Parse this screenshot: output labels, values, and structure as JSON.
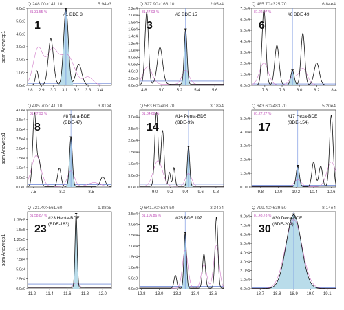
{
  "y_axis_label": "sam Anewrep1",
  "chart_data": [
    {
      "type": "line",
      "panel_number": "1",
      "title": "#1 BDE 3",
      "title2": "",
      "transition": "Q 248.00>141.10",
      "max_intensity": "5.94e3",
      "match": "81.31.55 %",
      "xlim": [
        2.78,
        3.5
      ],
      "ylim": [
        0,
        6.0
      ],
      "y_exp": "e3",
      "x_ticks": [
        "2.8",
        "2.9",
        "3.0",
        "3.1",
        "3.2",
        "3.3",
        "3.4"
      ],
      "y_ticks": [
        "0.0e0",
        "1.0e3",
        "2.0e3",
        "3.0e3",
        "4.0e3",
        "5.0e3",
        "6.0e3"
      ],
      "peak_rt": 3.11,
      "series": [
        {
          "style": "black",
          "peaks": [
            [
              2.86,
              1.1,
              0.012
            ],
            [
              2.98,
              3.6,
              0.022
            ],
            [
              3.11,
              5.94,
              0.02
            ],
            [
              3.22,
              1.6,
              0.025
            ]
          ]
        },
        {
          "style": "pink",
          "peaks": [
            [
              2.87,
              2.8,
              0.04
            ],
            [
              2.99,
              2.6,
              0.05
            ],
            [
              3.12,
              2.3,
              0.06
            ],
            [
              3.3,
              0.6,
              0.04
            ]
          ]
        }
      ]
    },
    {
      "type": "line",
      "panel_number": "3",
      "title": "#3 BDE 15",
      "title2": "",
      "transition": "Q 327.90>168.10",
      "max_intensity": "2.05e4",
      "match": "81.47.93 %",
      "xlim": [
        4.75,
        5.7
      ],
      "ylim": [
        0,
        2.2
      ],
      "y_exp": "e4",
      "x_ticks": [
        "4.8",
        "5.0",
        "5.2",
        "5.4",
        "5.6"
      ],
      "y_ticks": [
        "0.0e0",
        "2.0e3",
        "4.0e3",
        "6.0e3",
        "8.0e3",
        "1.0e4",
        "1.2e4",
        "1.4e4",
        "1.6e4",
        "1.8e4",
        "2.0e4",
        "2.2e4"
      ],
      "y_tick_values": [
        0,
        0.2,
        0.4,
        0.6,
        0.8,
        1.0,
        1.2,
        1.4,
        1.6,
        1.8,
        2.0,
        2.2
      ],
      "peak_rt": 5.27,
      "series": [
        {
          "style": "black",
          "peaks": [
            [
              4.83,
              2.05,
              0.02
            ],
            [
              4.98,
              1.05,
              0.03
            ],
            [
              5.27,
              1.58,
              0.016
            ]
          ]
        },
        {
          "style": "pink",
          "peaks": [
            [
              4.84,
              0.5,
              0.05
            ],
            [
              5.27,
              0.4,
              0.04
            ]
          ]
        }
      ]
    },
    {
      "type": "line",
      "panel_number": "6",
      "title": "#6 BDE 49",
      "title2": "",
      "transition": "Q 485.70>325.70",
      "max_intensity": "6.84e4",
      "match": "81.22.07 %",
      "xlim": [
        7.45,
        8.42
      ],
      "ylim": [
        0,
        7.0
      ],
      "y_exp": "e4",
      "x_ticks": [
        "7.6",
        "7.8",
        "8.0",
        "8.2",
        "8.4"
      ],
      "y_ticks": [
        "0.0e0",
        "1.0e4",
        "2.0e4",
        "3.0e4",
        "4.0e4",
        "5.0e4",
        "6.0e4",
        "7.0e4"
      ],
      "peak_rt": 7.92,
      "series": [
        {
          "style": "black",
          "peaks": [
            [
              7.59,
              6.84,
              0.022
            ],
            [
              7.74,
              3.6,
              0.025
            ],
            [
              7.92,
              1.3,
              0.02
            ],
            [
              8.04,
              4.7,
              0.022
            ],
            [
              8.2,
              2.0,
              0.03
            ]
          ]
        },
        {
          "style": "pink",
          "peaks": [
            [
              7.59,
              2.0,
              0.05
            ],
            [
              7.92,
              0.7,
              0.04
            ],
            [
              8.04,
              1.5,
              0.05
            ]
          ]
        }
      ]
    },
    {
      "type": "line",
      "panel_number": "8",
      "title": "#8 Tetra-BDE",
      "title2": "(BDE-47)",
      "transition": "Q 485.70>141.10",
      "max_intensity": "3.81e4",
      "match": "81.77.93 %",
      "xlim": [
        7.4,
        8.85
      ],
      "ylim": [
        0,
        4.0
      ],
      "y_exp": "e4",
      "x_ticks": [
        "7.5",
        "8.0",
        "8.5"
      ],
      "y_ticks": [
        "0.0e0",
        "5.0e3",
        "1.0e4",
        "1.5e4",
        "2.0e4",
        "2.5e4",
        "3.0e4",
        "3.5e4",
        "4.0e4"
      ],
      "y_tick_values": [
        0,
        0.5,
        1.0,
        1.5,
        2.0,
        2.5,
        3.0,
        3.5,
        4.0
      ],
      "peak_rt": 8.15,
      "series": [
        {
          "style": "black",
          "peaks": [
            [
              7.52,
              3.81,
              0.03
            ],
            [
              7.6,
              1.3,
              0.03
            ],
            [
              7.95,
              0.95,
              0.03
            ],
            [
              8.15,
              2.55,
              0.025
            ],
            [
              8.7,
              0.5,
              0.04
            ]
          ]
        },
        {
          "style": "pink",
          "peaks": [
            [
              7.55,
              1.6,
              0.08
            ],
            [
              8.15,
              0.8,
              0.06
            ],
            [
              8.55,
              0.2,
              0.1
            ]
          ]
        }
      ]
    },
    {
      "type": "line",
      "panel_number": "14",
      "title": "#14 Penta-BDE",
      "title2": "(BDE-99)",
      "transition": "Q 563.60>403.70",
      "max_intensity": "3.18e4",
      "match": "81.84.68 %",
      "xlim": [
        8.8,
        9.9
      ],
      "ylim": [
        0,
        3.3
      ],
      "y_exp": "e4",
      "x_ticks": [
        "9.0",
        "9.2",
        "9.4",
        "9.6",
        "9.8"
      ],
      "y_ticks": [
        "0.0e0",
        "5.0e3",
        "1.0e4",
        "1.5e4",
        "2.0e4",
        "2.5e4",
        "3.0e4"
      ],
      "y_tick_values": [
        0,
        0.5,
        1.0,
        1.5,
        2.0,
        2.5,
        3.0
      ],
      "peak_rt": 9.44,
      "series": [
        {
          "style": "black",
          "peaks": [
            [
              9.02,
              3.18,
              0.022
            ],
            [
              9.1,
              2.4,
              0.02
            ],
            [
              9.19,
              0.6,
              0.015
            ],
            [
              9.25,
              0.8,
              0.015
            ],
            [
              9.44,
              1.7,
              0.016
            ]
          ]
        },
        {
          "style": "pink",
          "peaks": [
            [
              9.04,
              1.1,
              0.06
            ],
            [
              9.44,
              0.55,
              0.04
            ]
          ]
        }
      ]
    },
    {
      "type": "line",
      "panel_number": "17",
      "title": "#17 Hexa-BDE",
      "title2": "(BDE-154)",
      "transition": "Q 643.60>483.70",
      "max_intensity": "5.20e4",
      "match": "81.27.27 %",
      "xlim": [
        9.7,
        10.65
      ],
      "ylim": [
        0,
        5.6
      ],
      "y_exp": "e4",
      "x_ticks": [
        "9.8",
        "10.0",
        "10.2",
        "10.4",
        "10.6"
      ],
      "y_ticks": [
        "0.0e0",
        "1.0e4",
        "2.0e4",
        "3.0e4",
        "4.0e4",
        "5.0e4"
      ],
      "peak_rt": 10.22,
      "series": [
        {
          "style": "black",
          "peaks": [
            [
              10.22,
              1.5,
              0.018
            ],
            [
              10.4,
              1.8,
              0.02
            ],
            [
              10.48,
              1.5,
              0.02
            ],
            [
              10.6,
              5.2,
              0.02
            ]
          ]
        },
        {
          "style": "pink",
          "peaks": [
            [
              10.22,
              0.5,
              0.04
            ],
            [
              10.6,
              1.8,
              0.05
            ]
          ]
        }
      ]
    },
    {
      "type": "line",
      "panel_number": "23",
      "title": "#23 Hepta-BDE",
      "title2": "(BDE-183)",
      "transition": "Q 721.40>561.60",
      "max_intensity": "1.88e5",
      "match": "81.58.87 %",
      "xlim": [
        11.15,
        12.1
      ],
      "ylim": [
        0,
        1.95
      ],
      "y_exp": "e5",
      "x_ticks": [
        "11.2",
        "11.4",
        "11.6",
        "11.8",
        "12.0"
      ],
      "y_ticks": [
        "0.0e0",
        "2.5e4",
        "5.0e4",
        "7.5e4",
        "1.0e5",
        "1.25e5",
        "1.5e5",
        "1.75e5"
      ],
      "y_tick_values": [
        0,
        0.25,
        0.5,
        0.75,
        1.0,
        1.25,
        1.5,
        1.75
      ],
      "peak_rt": 11.7,
      "series": [
        {
          "style": "black",
          "peaks": [
            [
              11.7,
              1.88,
              0.012
            ]
          ]
        },
        {
          "style": "pink",
          "peaks": [
            [
              11.7,
              0.12,
              0.03
            ]
          ]
        }
      ]
    },
    {
      "type": "line",
      "panel_number": "25",
      "title": "#25 BDE 197",
      "title2": "",
      "transition": "Q 641.70>534.50",
      "max_intensity": "3.34e4",
      "match": "81.106.86 %",
      "xlim": [
        12.78,
        13.72
      ],
      "ylim": [
        0,
        3.6
      ],
      "y_exp": "e4",
      "x_ticks": [
        "12.8",
        "13.0",
        "13.2",
        "13.4",
        "13.6"
      ],
      "y_ticks": [
        "0.0e0",
        "5.0e3",
        "1.0e4",
        "1.5e4",
        "2.0e4",
        "2.5e4",
        "3.0e4",
        "3.5e4"
      ],
      "y_tick_values": [
        0,
        0.5,
        1.0,
        1.5,
        2.0,
        2.5,
        3.0,
        3.5
      ],
      "peak_rt": 13.29,
      "series": [
        {
          "style": "black",
          "peaks": [
            [
              13.18,
              0.6,
              0.015
            ],
            [
              13.29,
              2.6,
              0.014
            ],
            [
              13.5,
              1.6,
              0.016
            ],
            [
              13.64,
              3.34,
              0.016
            ]
          ]
        },
        {
          "style": "pink",
          "peaks": [
            [
              13.29,
              1.8,
              0.03
            ],
            [
              13.5,
              1.1,
              0.03
            ],
            [
              13.64,
              2.0,
              0.03
            ]
          ]
        }
      ]
    },
    {
      "type": "line",
      "panel_number": "30",
      "title": "#30 Deca-BDE",
      "title2": "(BDE-209)",
      "transition": "Q 799.40>639.50",
      "max_intensity": "8.14e4",
      "match": "81.48.78 %",
      "xlim": [
        18.65,
        19.15
      ],
      "ylim": [
        0,
        8.5
      ],
      "y_exp": "e4",
      "x_ticks": [
        "18.7",
        "18.8",
        "18.9",
        "19.0",
        "19.1"
      ],
      "y_ticks": [
        "0.0e0",
        "1.0e4",
        "2.0e4",
        "3.0e4",
        "4.0e4",
        "5.0e4",
        "6.0e4",
        "7.0e4",
        "8.0e4"
      ],
      "peak_rt": 18.9,
      "series": [
        {
          "style": "black",
          "peaks": [
            [
              18.9,
              8.14,
              0.045
            ]
          ]
        },
        {
          "style": "pink",
          "peaks": [
            [
              18.9,
              7.6,
              0.05
            ]
          ]
        }
      ]
    }
  ]
}
